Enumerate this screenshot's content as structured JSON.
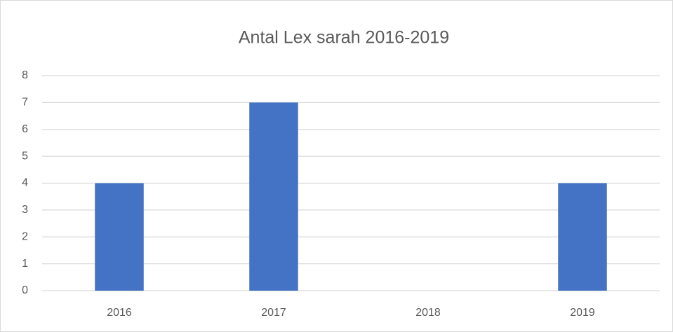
{
  "chart_data": {
    "type": "bar",
    "title": "Antal Lex sarah 2016-2019",
    "categories": [
      "2016",
      "2017",
      "2018",
      "2019"
    ],
    "values": [
      4,
      7,
      0,
      4
    ],
    "color": "#4472c4",
    "ylim": [
      0,
      8
    ],
    "yticks": [
      0,
      1,
      2,
      3,
      4,
      5,
      6,
      7,
      8
    ],
    "grid": true
  }
}
